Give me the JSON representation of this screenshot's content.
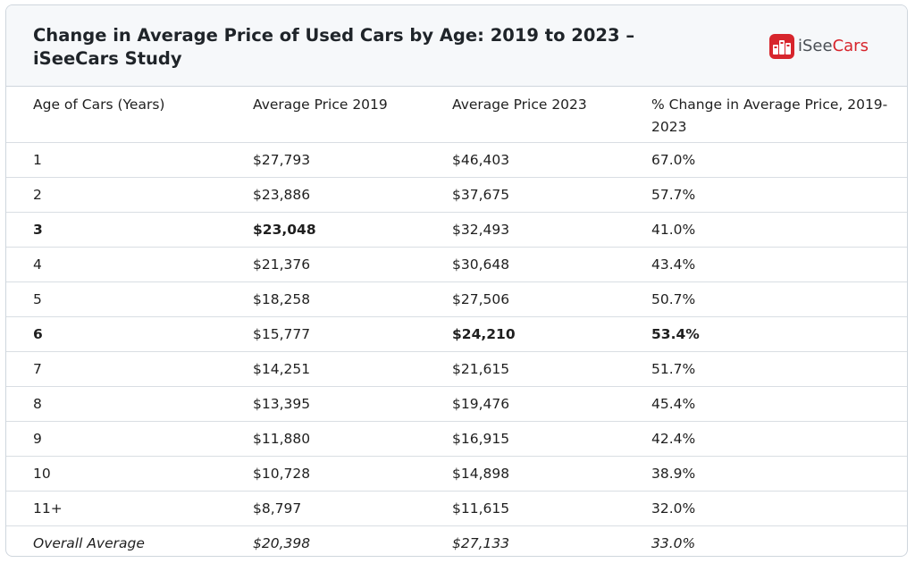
{
  "header": {
    "title": "Change in Average Price of Used Cars by Age: 2019 to 2023 – iSeeCars Study",
    "logo_prefix": "iSee",
    "logo_suffix": "Cars"
  },
  "colors": {
    "brand_red": "#d7252c",
    "header_bg": "#f6f8fa",
    "border": "#cfd6dd"
  },
  "chart_data": {
    "type": "table",
    "title": "Change in Average Price of Used Cars by Age: 2019 to 2023 – iSeeCars Study",
    "columns": [
      "Age of Cars (Years)",
      "Average Price 2019",
      "Average Price 2023",
      "% Change in Average Price, 2019-2023"
    ],
    "rows": [
      {
        "cells": [
          "1",
          "$27,793",
          "$46,403",
          "67.0%"
        ],
        "bold": [
          false,
          false,
          false,
          false
        ]
      },
      {
        "cells": [
          "2",
          "$23,886",
          "$37,675",
          "57.7%"
        ],
        "bold": [
          false,
          false,
          false,
          false
        ]
      },
      {
        "cells": [
          "3",
          "$23,048",
          "$32,493",
          "41.0%"
        ],
        "bold": [
          true,
          true,
          false,
          false
        ]
      },
      {
        "cells": [
          "4",
          "$21,376",
          "$30,648",
          "43.4%"
        ],
        "bold": [
          false,
          false,
          false,
          false
        ]
      },
      {
        "cells": [
          "5",
          "$18,258",
          "$27,506",
          "50.7%"
        ],
        "bold": [
          false,
          false,
          false,
          false
        ]
      },
      {
        "cells": [
          "6",
          "$15,777",
          "$24,210",
          "53.4%"
        ],
        "bold": [
          true,
          false,
          true,
          true
        ]
      },
      {
        "cells": [
          "7",
          "$14,251",
          "$21,615",
          "51.7%"
        ],
        "bold": [
          false,
          false,
          false,
          false
        ]
      },
      {
        "cells": [
          "8",
          "$13,395",
          "$19,476",
          "45.4%"
        ],
        "bold": [
          false,
          false,
          false,
          false
        ]
      },
      {
        "cells": [
          "9",
          "$11,880",
          "$16,915",
          "42.4%"
        ],
        "bold": [
          false,
          false,
          false,
          false
        ]
      },
      {
        "cells": [
          "10",
          "$10,728",
          "$14,898",
          "38.9%"
        ],
        "bold": [
          false,
          false,
          false,
          false
        ]
      },
      {
        "cells": [
          "11+",
          "$8,797",
          "$11,615",
          "32.0%"
        ],
        "bold": [
          false,
          false,
          false,
          false
        ]
      }
    ],
    "summary_row": {
      "cells": [
        "Overall Average",
        "$20,398",
        "$27,133",
        "33.0%"
      ],
      "italic": true
    }
  }
}
